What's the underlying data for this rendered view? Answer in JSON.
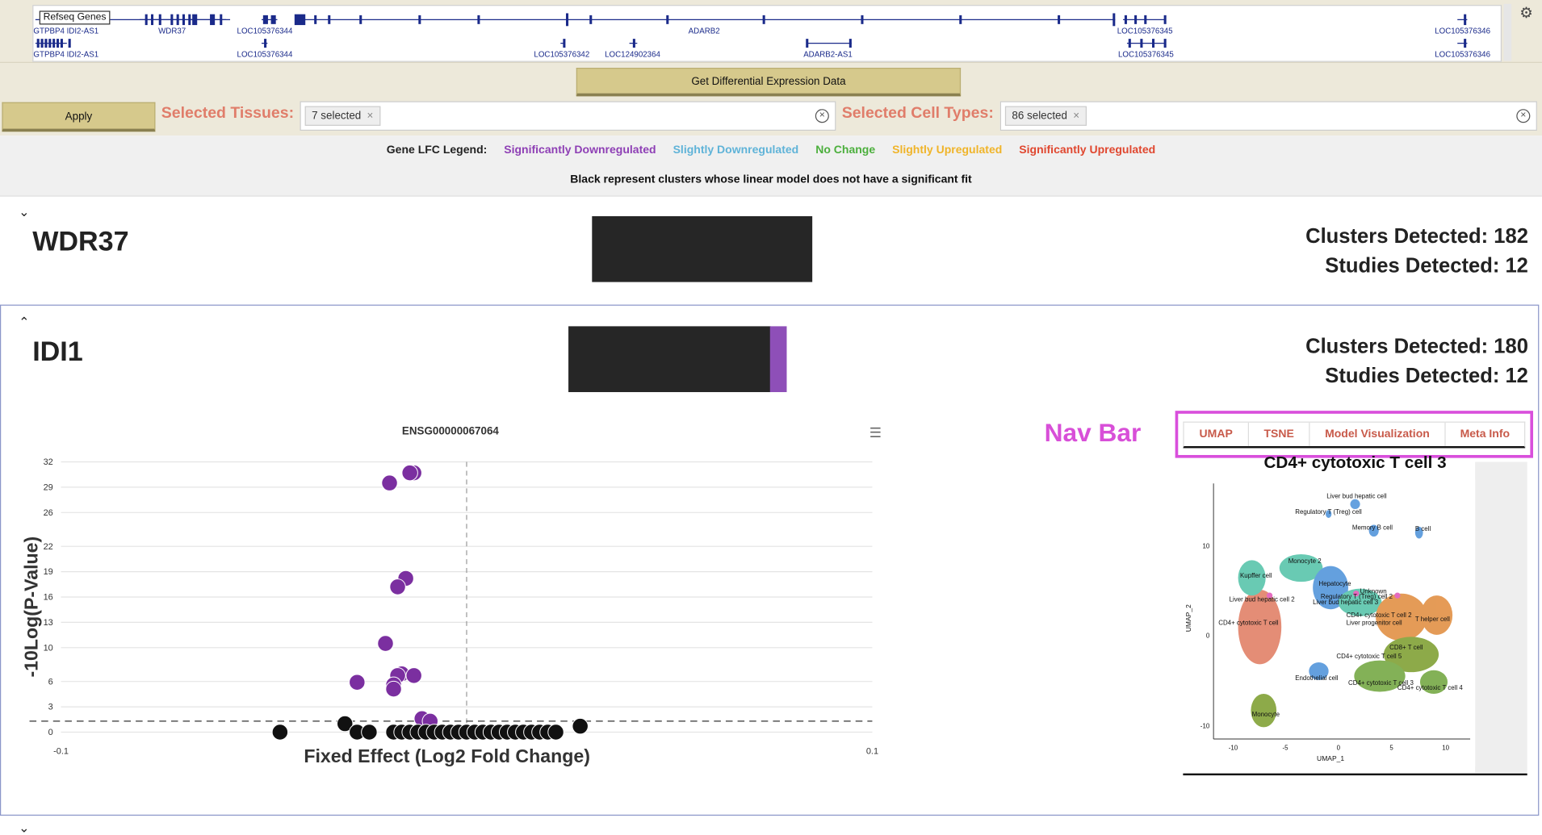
{
  "track": {
    "label": "Refseq Genes",
    "genes": [
      "GTPBP4 IDI2-AS1",
      "WDR37",
      "LOC105376344",
      "ADARB2",
      "LOC105376345",
      "LOC105376346",
      "GTPBP4 IDI2-AS1",
      "LOC105376344",
      "LOC105376342",
      "LOC124902364",
      "ADARB2-AS1",
      "LOC105376345",
      "LOC105376346"
    ],
    "settings_icon": "gear-icon"
  },
  "controls": {
    "diff_button": "Get Differential Expression Data",
    "apply_button": "Apply",
    "tissues_label": "Selected Tissues:",
    "tissues_chip": "7 selected",
    "celltypes_label": "Selected Cell Types:",
    "celltypes_chip": "86 selected",
    "chip_remove": "×",
    "clear_icon": "×"
  },
  "legend": {
    "title": "Gene LFC Legend:",
    "items": [
      {
        "label": "Significantly Downregulated",
        "color": "#8e3fb5"
      },
      {
        "label": "Slightly Downregulated",
        "color": "#5fb3d8"
      },
      {
        "label": "No Change",
        "color": "#4caf3d"
      },
      {
        "label": "Slightly Upregulated",
        "color": "#f0b429"
      },
      {
        "label": "Significantly Upregulated",
        "color": "#e0472f"
      }
    ],
    "note": "Black represent clusters whose linear model does not have a significant fit"
  },
  "genes": [
    {
      "name": "WDR37",
      "clusters": "Clusters Detected: 182",
      "studies": "Studies Detected: 12"
    },
    {
      "name": "IDI1",
      "clusters": "Clusters Detected: 180",
      "studies": "Studies Detected: 12"
    }
  ],
  "plot": {
    "title": "ENSG00000067064",
    "menu_icon": "hamburger-menu-icon"
  },
  "annotation": {
    "nav_label": "Nav Bar"
  },
  "tabs": [
    "UMAP",
    "TSNE",
    "Model Visualization",
    "Meta Info"
  ],
  "umap": {
    "title": "CD4+ cytotoxic T cell 3",
    "xlabel": "UMAP_1",
    "ylabel": "UMAP_2",
    "xticks": [
      "-10",
      "-5",
      "0",
      "5",
      "10"
    ],
    "yticks": [
      "10",
      "0",
      "-10"
    ],
    "clusters": [
      "Liver bud hepatic cell",
      "Regulatory T (Treg) cell",
      "Memory B cell",
      "B cell",
      "Monocyte 2",
      "Kupffer cell",
      "Hepatocyte",
      "Unknown",
      "Liver bud hepatic cell 2",
      "Regulatory T (Treg) cell 2",
      "Liver bud hepatic cell 3",
      "CD4+ cytotoxic T cell 2",
      "Liver progenitor cell",
      "T helper cell",
      "CD4+ cytotoxic T cell",
      "CD8+ T cell",
      "CD4+ cytotoxic T cell 5",
      "Endothelial cell",
      "CD4+ cytotoxic T cell 3",
      "CD4+ cytotoxic T cell 4",
      "Monocyte"
    ],
    "colors": {
      "green": "#6ea43a",
      "orange": "#e08a3a",
      "salmon": "#e07a5f",
      "teal": "#4fc1a6",
      "blue": "#4a90d9",
      "olive": "#7a9c2a",
      "pink": "#e052b5"
    }
  },
  "chart_data": {
    "type": "scatter",
    "title": "ENSG00000067064",
    "xlabel": "Fixed Effect (Log2 Fold Change)",
    "ylabel": "-10Log(P-Value)",
    "xlim": [
      -0.1,
      0.1
    ],
    "ylim": [
      0,
      32
    ],
    "xticks": [
      -0.1,
      0.1
    ],
    "yticks": [
      0,
      3,
      6,
      10,
      13,
      16,
      19,
      22,
      26,
      29,
      32
    ],
    "significance_line_y": 1.3,
    "x_reference_line": 0,
    "series": [
      {
        "color": "#7b2fa0",
        "points": [
          [
            -0.019,
            29.5
          ],
          [
            -0.013,
            30.7
          ],
          [
            -0.014,
            30.7
          ],
          [
            -0.015,
            18.2
          ],
          [
            -0.017,
            17.2
          ],
          [
            -0.02,
            10.5
          ],
          [
            -0.027,
            5.9
          ],
          [
            -0.016,
            6.9
          ],
          [
            -0.017,
            6.7
          ],
          [
            -0.013,
            6.7
          ],
          [
            -0.018,
            5.6
          ],
          [
            -0.018,
            5.1
          ],
          [
            -0.011,
            1.6
          ],
          [
            -0.009,
            1.3
          ]
        ]
      },
      {
        "color": "#111111",
        "points": [
          [
            -0.046,
            0.0
          ],
          [
            -0.03,
            1.0
          ],
          [
            -0.027,
            0.0
          ],
          [
            -0.024,
            0.0
          ],
          [
            -0.018,
            0.0
          ],
          [
            -0.016,
            0.0
          ],
          [
            -0.014,
            0.0
          ],
          [
            -0.012,
            0.0
          ],
          [
            -0.01,
            0.0
          ],
          [
            -0.008,
            0.0
          ],
          [
            -0.006,
            0.0
          ],
          [
            -0.004,
            0.0
          ],
          [
            -0.002,
            0.0
          ],
          [
            0.0,
            0.0
          ],
          [
            0.002,
            0.0
          ],
          [
            0.004,
            0.0
          ],
          [
            0.006,
            0.0
          ],
          [
            0.008,
            0.0
          ],
          [
            0.01,
            0.0
          ],
          [
            0.012,
            0.0
          ],
          [
            0.014,
            0.0
          ],
          [
            0.016,
            0.0
          ],
          [
            0.018,
            0.0
          ],
          [
            0.02,
            0.0
          ],
          [
            0.022,
            0.0
          ],
          [
            0.028,
            0.7
          ]
        ]
      }
    ]
  }
}
